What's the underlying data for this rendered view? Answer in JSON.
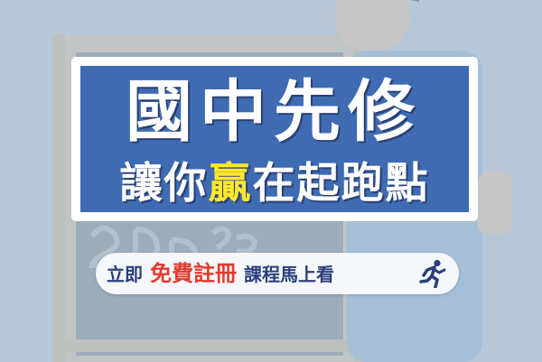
{
  "headline": {
    "line1": "國中先修",
    "line2_prefix": "讓你",
    "line2_highlight": "贏",
    "line2_suffix": "在起跑點"
  },
  "cta": {
    "prefix": "立即",
    "emphasis": "免費註冊",
    "suffix": "課程馬上看",
    "icon": "running-person-icon"
  },
  "colors": {
    "background": "#b3c5d7",
    "headline_panel": "#3e6bb1",
    "highlight": "#ffe92a",
    "cta_text": "#2b3f7a",
    "cta_emphasis": "#e23b2e"
  }
}
